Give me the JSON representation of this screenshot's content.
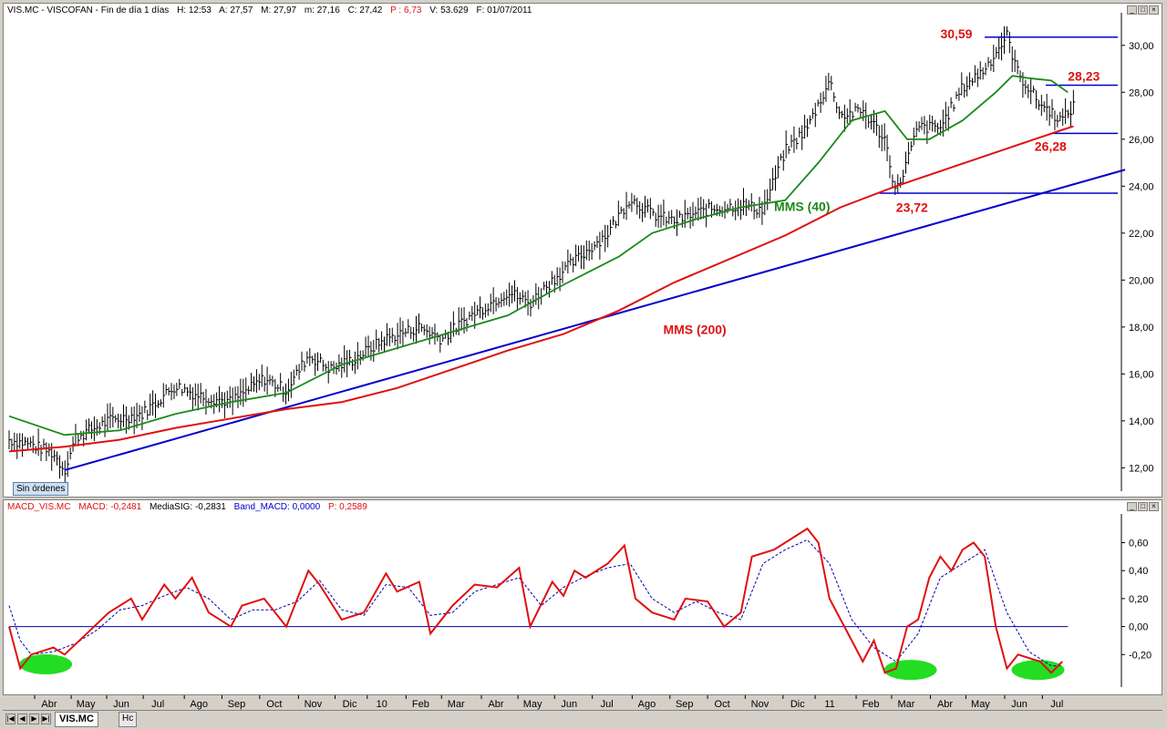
{
  "price_header": {
    "symbol": "VIS.MC - VISCOFAN - Fin de día 1 días",
    "high": "H: 12:53",
    "open": "A: 27,57",
    "max": "M: 27,97",
    "min": "m: 27,16",
    "close": "C: 27,42",
    "pct": "P : 6,73",
    "volume": "V: 53.629",
    "date": "F: 01/07/2011"
  },
  "macd_header": {
    "name": "MACD_VIS.MC",
    "macd": "MACD: -0,2481",
    "signal": "MediaSIG: -0,2831",
    "band": "Band_MACD: 0,0000",
    "p": "P: 0,2589"
  },
  "badge": "Sin órdenes",
  "tab_label": "VIS.MC",
  "tab2_label": "Hc",
  "colors": {
    "price_bar": "#000000",
    "mms40": "#1a8a1a",
    "mms200": "#e01010",
    "trendline": "#0000cc",
    "hline": "#0000cc",
    "annot": "#e01010",
    "macd": "#e01010",
    "signal": "#0000aa",
    "highlight": "#22dd22"
  },
  "x_labels": [
    {
      "label": "Abr",
      "pos": 0.037
    },
    {
      "label": "May",
      "pos": 0.07
    },
    {
      "label": "Jun",
      "pos": 0.102
    },
    {
      "label": "Jul",
      "pos": 0.135
    },
    {
      "label": "Ago",
      "pos": 0.172
    },
    {
      "label": "Sep",
      "pos": 0.206
    },
    {
      "label": "Oct",
      "pos": 0.24
    },
    {
      "label": "Nov",
      "pos": 0.275
    },
    {
      "label": "Dic",
      "pos": 0.308
    },
    {
      "label": "10",
      "pos": 0.337
    },
    {
      "label": "Feb",
      "pos": 0.372
    },
    {
      "label": "Mar",
      "pos": 0.404
    },
    {
      "label": "Abr",
      "pos": 0.44
    },
    {
      "label": "May",
      "pos": 0.473
    },
    {
      "label": "Jun",
      "pos": 0.506
    },
    {
      "label": "Jul",
      "pos": 0.54
    },
    {
      "label": "Ago",
      "pos": 0.576
    },
    {
      "label": "Sep",
      "pos": 0.61
    },
    {
      "label": "Oct",
      "pos": 0.644
    },
    {
      "label": "Nov",
      "pos": 0.678
    },
    {
      "label": "Dic",
      "pos": 0.712
    },
    {
      "label": "11",
      "pos": 0.741
    },
    {
      "label": "Feb",
      "pos": 0.778
    },
    {
      "label": "Mar",
      "pos": 0.81
    },
    {
      "label": "Abr",
      "pos": 0.845
    },
    {
      "label": "May",
      "pos": 0.877
    },
    {
      "label": "Jun",
      "pos": 0.912
    },
    {
      "label": "Jul",
      "pos": 0.946
    }
  ],
  "chart_data": [
    {
      "type": "line",
      "title": "",
      "ylim": [
        11.2,
        31.0
      ],
      "y_ticks": [
        "12,00",
        "14,00",
        "16,00",
        "18,00",
        "20,00",
        "22,00",
        "24,00",
        "26,00",
        "28,00",
        "30,00"
      ],
      "y_tick_values": [
        12,
        14,
        16,
        18,
        20,
        22,
        24,
        26,
        28,
        30
      ],
      "price_path": [
        [
          0.0,
          13.2
        ],
        [
          0.02,
          13.0
        ],
        [
          0.04,
          12.6
        ],
        [
          0.05,
          11.9
        ],
        [
          0.06,
          13.3
        ],
        [
          0.09,
          14.0
        ],
        [
          0.12,
          14.3
        ],
        [
          0.15,
          15.5
        ],
        [
          0.17,
          15.1
        ],
        [
          0.2,
          14.8
        ],
        [
          0.23,
          15.8
        ],
        [
          0.25,
          15.3
        ],
        [
          0.27,
          16.8
        ],
        [
          0.29,
          16.2
        ],
        [
          0.31,
          16.6
        ],
        [
          0.34,
          17.5
        ],
        [
          0.37,
          18.0
        ],
        [
          0.39,
          17.5
        ],
        [
          0.42,
          18.6
        ],
        [
          0.45,
          19.5
        ],
        [
          0.47,
          19.0
        ],
        [
          0.49,
          20.0
        ],
        [
          0.51,
          20.8
        ],
        [
          0.54,
          22.0
        ],
        [
          0.56,
          23.5
        ],
        [
          0.58,
          22.8
        ],
        [
          0.6,
          22.5
        ],
        [
          0.63,
          23.0
        ],
        [
          0.66,
          23.2
        ],
        [
          0.68,
          23.0
        ],
        [
          0.7,
          25.5
        ],
        [
          0.72,
          26.5
        ],
        [
          0.74,
          28.5
        ],
        [
          0.75,
          27.0
        ],
        [
          0.77,
          27.2
        ],
        [
          0.79,
          26.0
        ],
        [
          0.8,
          23.7
        ],
        [
          0.82,
          26.5
        ],
        [
          0.84,
          26.5
        ],
        [
          0.86,
          28.2
        ],
        [
          0.88,
          29.0
        ],
        [
          0.9,
          30.4
        ],
        [
          0.91,
          28.8
        ],
        [
          0.93,
          27.5
        ],
        [
          0.95,
          26.8
        ],
        [
          0.96,
          27.4
        ]
      ],
      "series": [
        {
          "name": "MMS (40)",
          "points": [
            [
              0.0,
              14.2
            ],
            [
              0.05,
              13.4
            ],
            [
              0.1,
              13.6
            ],
            [
              0.15,
              14.3
            ],
            [
              0.2,
              14.8
            ],
            [
              0.25,
              15.2
            ],
            [
              0.3,
              16.4
            ],
            [
              0.35,
              17.1
            ],
            [
              0.4,
              17.8
            ],
            [
              0.45,
              18.5
            ],
            [
              0.5,
              19.8
            ],
            [
              0.55,
              21.0
            ],
            [
              0.58,
              22.0
            ],
            [
              0.62,
              22.6
            ],
            [
              0.66,
              23.1
            ],
            [
              0.7,
              23.4
            ],
            [
              0.73,
              25.0
            ],
            [
              0.76,
              26.8
            ],
            [
              0.79,
              27.2
            ],
            [
              0.81,
              26.0
            ],
            [
              0.83,
              26.0
            ],
            [
              0.86,
              26.8
            ],
            [
              0.89,
              28.0
            ],
            [
              0.905,
              28.7
            ],
            [
              0.92,
              28.6
            ],
            [
              0.94,
              28.5
            ],
            [
              0.955,
              28.0
            ]
          ]
        },
        {
          "name": "MMS (200)",
          "points": [
            [
              0.0,
              12.7
            ],
            [
              0.05,
              12.9
            ],
            [
              0.1,
              13.2
            ],
            [
              0.15,
              13.7
            ],
            [
              0.2,
              14.1
            ],
            [
              0.25,
              14.5
            ],
            [
              0.3,
              14.8
            ],
            [
              0.35,
              15.4
            ],
            [
              0.4,
              16.2
            ],
            [
              0.45,
              17.0
            ],
            [
              0.5,
              17.7
            ],
            [
              0.55,
              18.7
            ],
            [
              0.6,
              19.9
            ],
            [
              0.65,
              20.9
            ],
            [
              0.7,
              21.9
            ],
            [
              0.75,
              23.1
            ],
            [
              0.8,
              24.0
            ],
            [
              0.85,
              24.8
            ],
            [
              0.9,
              25.6
            ],
            [
              0.95,
              26.4
            ],
            [
              0.96,
              26.55
            ]
          ]
        }
      ],
      "trendline": [
        [
          0.05,
          11.9
        ],
        [
          1.0,
          24.7
        ]
      ],
      "hlines": [
        {
          "y": 30.35,
          "x0": 0.88,
          "x1": 1.0
        },
        {
          "y": 28.3,
          "x0": 0.935,
          "x1": 1.0
        },
        {
          "y": 26.25,
          "x0": 0.94,
          "x1": 1.0
        },
        {
          "y": 23.7,
          "x0": 0.785,
          "x1": 1.0
        }
      ],
      "annotations": [
        {
          "text": "30,59",
          "x": 0.84,
          "y": 30.3,
          "color": "#e01010"
        },
        {
          "text": "28,23",
          "x": 0.955,
          "y": 28.5,
          "color": "#e01010"
        },
        {
          "text": "26,28",
          "x": 0.925,
          "y": 25.5,
          "color": "#e01010"
        },
        {
          "text": "23,72",
          "x": 0.8,
          "y": 22.9,
          "color": "#e01010"
        },
        {
          "text": "MMS (40)",
          "x": 0.69,
          "y": 22.95,
          "color": "#1a8a1a"
        },
        {
          "text": "MMS (200)",
          "x": 0.59,
          "y": 17.7,
          "color": "#e01010"
        }
      ]
    },
    {
      "type": "line",
      "title": "",
      "ylim": [
        -0.4,
        0.74
      ],
      "y_ticks": [
        "0,60",
        "0,40",
        "0,20",
        "0,00",
        "-0,20"
      ],
      "y_tick_values": [
        0.6,
        0.4,
        0.2,
        0.0,
        -0.2
      ],
      "series": [
        {
          "name": "MACD",
          "points": [
            [
              0.0,
              0.0
            ],
            [
              0.01,
              -0.3
            ],
            [
              0.02,
              -0.2
            ],
            [
              0.04,
              -0.15
            ],
            [
              0.05,
              -0.2
            ],
            [
              0.07,
              -0.05
            ],
            [
              0.09,
              0.1
            ],
            [
              0.11,
              0.2
            ],
            [
              0.12,
              0.05
            ],
            [
              0.14,
              0.3
            ],
            [
              0.15,
              0.2
            ],
            [
              0.165,
              0.35
            ],
            [
              0.18,
              0.1
            ],
            [
              0.2,
              0.0
            ],
            [
              0.21,
              0.15
            ],
            [
              0.23,
              0.2
            ],
            [
              0.25,
              0.0
            ],
            [
              0.27,
              0.4
            ],
            [
              0.28,
              0.3
            ],
            [
              0.3,
              0.05
            ],
            [
              0.32,
              0.1
            ],
            [
              0.34,
              0.38
            ],
            [
              0.35,
              0.25
            ],
            [
              0.37,
              0.32
            ],
            [
              0.38,
              -0.05
            ],
            [
              0.4,
              0.15
            ],
            [
              0.42,
              0.3
            ],
            [
              0.44,
              0.28
            ],
            [
              0.46,
              0.42
            ],
            [
              0.47,
              0.0
            ],
            [
              0.49,
              0.32
            ],
            [
              0.5,
              0.22
            ],
            [
              0.51,
              0.4
            ],
            [
              0.52,
              0.35
            ],
            [
              0.54,
              0.45
            ],
            [
              0.555,
              0.58
            ],
            [
              0.565,
              0.2
            ],
            [
              0.58,
              0.1
            ],
            [
              0.6,
              0.05
            ],
            [
              0.61,
              0.2
            ],
            [
              0.63,
              0.18
            ],
            [
              0.645,
              0.0
            ],
            [
              0.66,
              0.1
            ],
            [
              0.67,
              0.5
            ],
            [
              0.69,
              0.55
            ],
            [
              0.7,
              0.6
            ],
            [
              0.72,
              0.7
            ],
            [
              0.73,
              0.6
            ],
            [
              0.74,
              0.2
            ],
            [
              0.76,
              -0.1
            ],
            [
              0.77,
              -0.25
            ],
            [
              0.78,
              -0.1
            ],
            [
              0.79,
              -0.33
            ],
            [
              0.8,
              -0.3
            ],
            [
              0.81,
              0.0
            ],
            [
              0.82,
              0.05
            ],
            [
              0.83,
              0.35
            ],
            [
              0.84,
              0.5
            ],
            [
              0.85,
              0.4
            ],
            [
              0.86,
              0.55
            ],
            [
              0.87,
              0.6
            ],
            [
              0.88,
              0.5
            ],
            [
              0.89,
              0.0
            ],
            [
              0.9,
              -0.3
            ],
            [
              0.91,
              -0.2
            ],
            [
              0.93,
              -0.25
            ],
            [
              0.94,
              -0.33
            ],
            [
              0.95,
              -0.25
            ]
          ]
        },
        {
          "name": "MediaSIG",
          "points": [
            [
              0.0,
              0.15
            ],
            [
              0.01,
              -0.1
            ],
            [
              0.02,
              -0.2
            ],
            [
              0.04,
              -0.18
            ],
            [
              0.06,
              -0.12
            ],
            [
              0.08,
              -0.02
            ],
            [
              0.1,
              0.12
            ],
            [
              0.12,
              0.15
            ],
            [
              0.14,
              0.22
            ],
            [
              0.16,
              0.28
            ],
            [
              0.18,
              0.2
            ],
            [
              0.2,
              0.05
            ],
            [
              0.22,
              0.12
            ],
            [
              0.24,
              0.12
            ],
            [
              0.26,
              0.18
            ],
            [
              0.28,
              0.33
            ],
            [
              0.3,
              0.12
            ],
            [
              0.32,
              0.08
            ],
            [
              0.34,
              0.3
            ],
            [
              0.36,
              0.28
            ],
            [
              0.38,
              0.08
            ],
            [
              0.4,
              0.1
            ],
            [
              0.42,
              0.25
            ],
            [
              0.44,
              0.3
            ],
            [
              0.46,
              0.35
            ],
            [
              0.48,
              0.15
            ],
            [
              0.5,
              0.28
            ],
            [
              0.52,
              0.36
            ],
            [
              0.54,
              0.42
            ],
            [
              0.56,
              0.45
            ],
            [
              0.58,
              0.2
            ],
            [
              0.6,
              0.1
            ],
            [
              0.62,
              0.18
            ],
            [
              0.64,
              0.1
            ],
            [
              0.66,
              0.05
            ],
            [
              0.68,
              0.45
            ],
            [
              0.7,
              0.55
            ],
            [
              0.72,
              0.62
            ],
            [
              0.74,
              0.45
            ],
            [
              0.76,
              0.05
            ],
            [
              0.78,
              -0.15
            ],
            [
              0.8,
              -0.25
            ],
            [
              0.82,
              -0.05
            ],
            [
              0.84,
              0.35
            ],
            [
              0.86,
              0.45
            ],
            [
              0.88,
              0.55
            ],
            [
              0.9,
              0.1
            ],
            [
              0.92,
              -0.18
            ],
            [
              0.94,
              -0.28
            ],
            [
              0.95,
              -0.28
            ]
          ]
        }
      ],
      "zero_line": 0.0,
      "highlights": [
        {
          "x": 0.033,
          "y": -0.27
        },
        {
          "x": 0.813,
          "y": -0.31
        },
        {
          "x": 0.928,
          "y": -0.31
        }
      ]
    }
  ]
}
